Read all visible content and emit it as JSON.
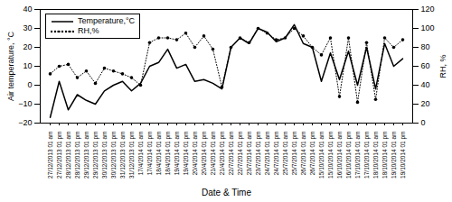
{
  "chart_data": {
    "type": "line",
    "xlabel": "Date & Time",
    "ylabel": "Air temperature, °C",
    "y2label": "RH, %",
    "categories": [
      "27/12/2013 01 am",
      "27/12/2013 01 pm",
      "28/12/2013 01 am",
      "28/12/2013 01 pm",
      "29/12/2013 01 am",
      "29/12/2013 01 pm",
      "30/12/2013 01 am",
      "30/12/2013 01 pm",
      "31/12/2013 01 am",
      "31/12/2013 01 pm",
      "17/4/2014 01 am",
      "17/4/2014 01 pm",
      "18/4/2014 01 am",
      "18/4/2014 01 pm",
      "19/4/2014 01 am",
      "19/4/2014 01 pm",
      "20/4/2014 01 am",
      "20/4/2014 01 pm",
      "21/4/2014 01 am",
      "21/4/2014 01 pm",
      "22/7/2014 01 am",
      "22/7/2014 01 pm",
      "23/7/2014 01 am",
      "23/7/2014 01 pm",
      "24/7/2014 01 am",
      "24/7/2014 01 pm",
      "25/7/2014 01 am",
      "25/7/2014 01 pm",
      "26/7/2014 01 am",
      "26/7/2014 01 pm",
      "15/10/2014 01 am",
      "15/10/2014 01 pm",
      "16/10/2014 01 am",
      "16/10/2014 01 pm",
      "17/10/2014 01 am",
      "17/10/2014 01 pm",
      "18/10/2014 01 am",
      "18/10/2014 01 pm",
      "19/10/2014 01 am",
      "19/10/2014 01 pm"
    ],
    "series": [
      {
        "name": "Temperature,°C",
        "color": "#000000",
        "line_style": "solid",
        "values": [
          -17,
          2,
          -13,
          -5,
          -8,
          -10,
          -3,
          0,
          2,
          -3,
          1,
          10,
          12,
          19,
          9,
          11,
          2,
          3,
          1,
          -2,
          20,
          25,
          22,
          30,
          28,
          23,
          25,
          32,
          22,
          20,
          2,
          17,
          3,
          18,
          0,
          20,
          -2,
          22,
          10,
          14
        ]
      },
      {
        "name": "RH,%",
        "color": "#000000",
        "line_style": "dotted",
        "marker": "dot",
        "axis": "y2",
        "values": [
          52,
          60,
          62,
          48,
          55,
          42,
          58,
          55,
          52,
          48,
          40,
          85,
          90,
          90,
          88,
          95,
          80,
          92,
          78,
          38,
          80,
          90,
          85,
          100,
          95,
          88,
          90,
          100,
          92,
          80,
          72,
          90,
          28,
          90,
          22,
          85,
          25,
          90,
          80,
          88
        ]
      }
    ],
    "ylim": [
      -20,
      40
    ],
    "yticks": [
      -20,
      -10,
      0,
      10,
      20,
      30,
      40
    ],
    "y2lim": [
      0,
      120
    ],
    "y2ticks": [
      0,
      20,
      40,
      60,
      80,
      100,
      120
    ],
    "legend": "upper left",
    "grid": false
  }
}
